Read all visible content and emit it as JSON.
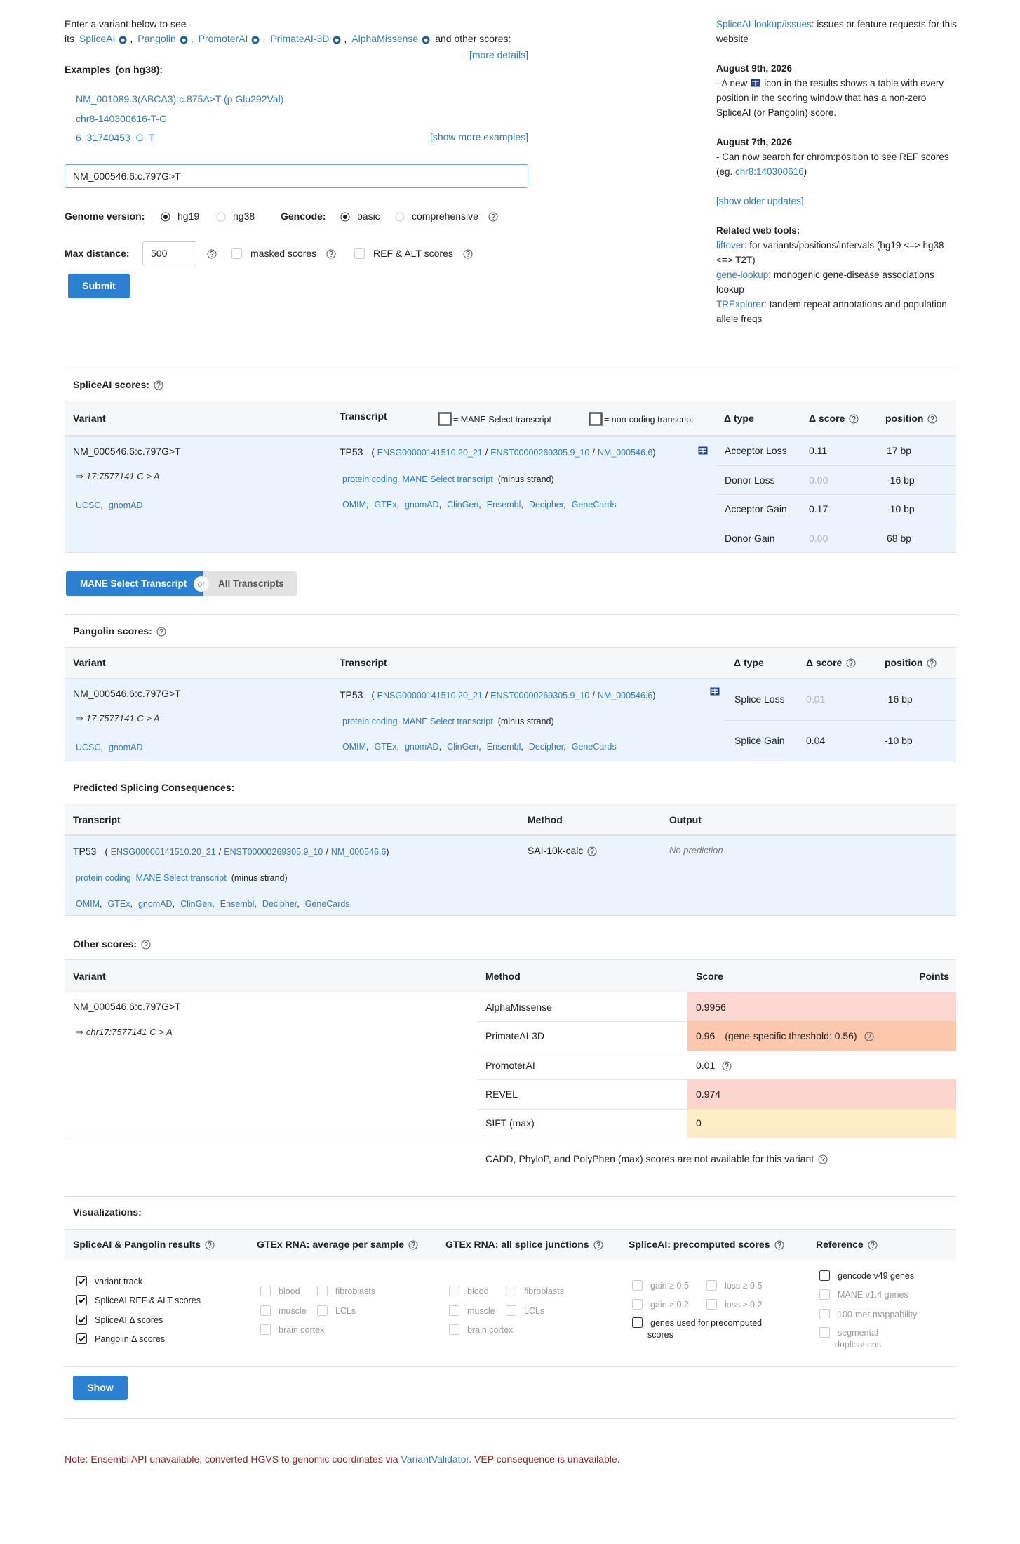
{
  "intro": {
    "lead": "Enter a variant below to see its",
    "tools": [
      "SpliceAI",
      "Pangolin",
      "PromoterAI",
      "PrimateAI-3D",
      "AlphaMissense"
    ],
    "sep": ",",
    "tail": "and other scores:",
    "more_details": "[more details]"
  },
  "examples": {
    "label": "Examples",
    "genome": "(on hg38):",
    "items": [
      "NM_001089.3(ABCA3):c.875A>T (p.Glu292Val)",
      "chr8-140300616-T-G",
      "6  31740453  G  T"
    ],
    "show_more": "[show more examples]"
  },
  "form": {
    "variant": "NM_000546.6:c.797G>T",
    "genome_label": "Genome version:",
    "genome_options": [
      "hg19",
      "hg38"
    ],
    "gencode_label": "Gencode:",
    "gencode_options": [
      "basic",
      "comprehensive"
    ],
    "max_distance_label": "Max distance:",
    "max_distance": 500,
    "checkboxes": [
      "masked scores",
      "REF & ALT scores"
    ],
    "submit": "Submit"
  },
  "sidebar": {
    "issues_link": "SpliceAI-lookup/issues",
    "issues_text": ": issues or feature requests for this website",
    "updates": [
      {
        "date": "August 9th, 2026",
        "before": "- A new",
        "after": "icon in the results shows a table with every position in the scoring window that has a non-zero SpliceAI (or Pangolin) score."
      },
      {
        "date": "August 7th, 2026",
        "before": "- Can now search for chrom:position to see REF scores (eg.",
        "link": "chr8:140300616",
        "after": ")"
      }
    ],
    "show_older": "[show older updates]",
    "tools_title": "Related web tools:",
    "tools": [
      {
        "name": "liftover",
        "desc": ": for variants/positions/intervals (hg19 <=> hg38 <=> T2T)"
      },
      {
        "name": "gene-lookup",
        "desc": ": monogenic gene-disease associations lookup"
      },
      {
        "name": "TRExplorer",
        "desc": ": tandem repeat annotations and population allele freqs"
      }
    ]
  },
  "spliceai": {
    "title": "SpliceAI scores:",
    "headers": {
      "variant": "Variant",
      "transcript": "Transcript",
      "mane_legend": "= MANE Select transcript",
      "noncoding_legend": "= non-coding transcript",
      "delta_type": "Δ type",
      "delta_score": "Δ score",
      "position": "position"
    },
    "variant": {
      "hgvs": "NM_000546.6:c.797G>T",
      "arrow": "⇒",
      "coords": "17:7577141 C > A",
      "links": [
        "UCSC",
        "gnomAD"
      ],
      "sep": ","
    },
    "transcript": {
      "gene": "TP53",
      "open": "(",
      "ids": [
        "ENSG00000141510.20_21",
        "ENST00000269305.9_10",
        "NM_000546.6"
      ],
      "id_sep": "/",
      "close": ")",
      "biotype": "protein coding",
      "mane": "MANE Select transcript",
      "strand": "(minus strand)",
      "links": [
        "OMIM",
        "GTEx",
        "gnomAD",
        "ClinGen",
        "Ensembl",
        "Decipher",
        "GeneCards"
      ],
      "sep": ","
    },
    "rows": [
      {
        "type": "Acceptor Loss",
        "score": "0.11",
        "position": "17 bp"
      },
      {
        "type": "Donor Loss",
        "score": "0.00",
        "position": "-16 bp"
      },
      {
        "type": "Acceptor Gain",
        "score": "0.17",
        "position": "-10 bp"
      },
      {
        "type": "Donor Gain",
        "score": "0.00",
        "position": "68 bp"
      }
    ]
  },
  "toggle": {
    "mane": "MANE Select Transcript",
    "or": "or",
    "all": "All Transcripts"
  },
  "pangolin": {
    "title": "Pangolin scores:",
    "headers": {
      "variant": "Variant",
      "transcript": "Transcript",
      "delta_type": "Δ type",
      "delta_score": "Δ score",
      "position": "position"
    },
    "variant": {
      "hgvs": "NM_000546.6:c.797G>T",
      "arrow": "⇒",
      "coords": "17:7577141 C > A",
      "links": [
        "UCSC",
        "gnomAD"
      ],
      "sep": ","
    },
    "transcript": {
      "gene": "TP53",
      "open": "(",
      "ids": [
        "ENSG00000141510.20_21",
        "ENST00000269305.9_10",
        "NM_000546.6"
      ],
      "id_sep": "/",
      "close": ")",
      "biotype": "protein coding",
      "mane": "MANE Select transcript",
      "strand": "(minus strand)",
      "links": [
        "OMIM",
        "GTEx",
        "gnomAD",
        "ClinGen",
        "Ensembl",
        "Decipher",
        "GeneCards"
      ],
      "sep": ","
    },
    "rows": [
      {
        "type": "Splice Loss",
        "score": "0.01",
        "position": "-16 bp"
      },
      {
        "type": "Splice Gain",
        "score": "0.04",
        "position": "-10 bp"
      }
    ]
  },
  "consequences": {
    "title": "Predicted Splicing Consequences:",
    "headers": {
      "transcript": "Transcript",
      "method": "Method",
      "output": "Output"
    },
    "transcript": {
      "gene": "TP53",
      "open": "(",
      "ids": [
        "ENSG00000141510.20_21",
        "ENST00000269305.9_10",
        "NM_000546.6"
      ],
      "id_sep": "/",
      "close": ")",
      "biotype": "protein coding",
      "mane": "MANE Select transcript",
      "strand": "(minus strand)",
      "links": [
        "OMIM",
        "GTEx",
        "gnomAD",
        "ClinGen",
        "Ensembl",
        "Decipher",
        "GeneCards"
      ],
      "sep": ","
    },
    "method": "SAI-10k-calc",
    "output": "No prediction"
  },
  "other": {
    "title": "Other scores:",
    "headers": {
      "variant": "Variant",
      "method": "Method",
      "score": "Score",
      "points": "Points"
    },
    "variant": {
      "hgvs": "NM_000546.6:c.797G>T",
      "arrow": "⇒",
      "coords": "chr17:7577141 C > A"
    },
    "rows": [
      {
        "method": "AlphaMissense",
        "score": 0.9956,
        "color": "#fdd8d2"
      },
      {
        "method": "PrimateAI-3D",
        "score": 0.96,
        "note": "(gene-specific threshold: 0.56)",
        "color": "#fcc8ad"
      },
      {
        "method": "PromoterAI",
        "score": 0.01
      },
      {
        "method": "REVEL",
        "score": 0.974,
        "color": "#fdd5cf"
      },
      {
        "method": "SIFT (max)",
        "score": 0,
        "color": "#feecc7"
      }
    ],
    "note": "CADD, PhyloP, and PolyPhen (max) scores are not available for this variant"
  },
  "visualizations": {
    "title": "Visualizations:",
    "columns": [
      {
        "header": "SpliceAI & Pangolin results",
        "items": [
          "variant track",
          "SpliceAI REF & ALT scores",
          "SpliceAI Δ scores",
          "Pangolin Δ scores"
        ]
      },
      {
        "header": "GTEx RNA: average per sample",
        "items": [
          "blood",
          "fibroblasts",
          "muscle",
          "LCLs",
          "brain cortex"
        ]
      },
      {
        "header": "GTEx RNA: all splice junctions",
        "items": [
          "blood",
          "fibroblasts",
          "muscle",
          "LCLs",
          "brain cortex"
        ]
      },
      {
        "header": "SpliceAI: precomputed scores",
        "items": [
          "gain ≥ 0.5",
          "loss ≥ 0.5",
          "gain ≥ 0.2",
          "loss ≥ 0.2",
          "genes used for precomputed scores"
        ]
      },
      {
        "header": "Reference",
        "items": [
          "gencode v49 genes",
          "MANE v1.4 genes",
          "100-mer mappability",
          "segmental duplications"
        ]
      }
    ],
    "show": "Show"
  },
  "footer": {
    "before": "Note: Ensembl API unavailable; converted HGVS to genomic coordinates via",
    "link": "VariantValidator",
    "after": ". VEP consequence is unavailable."
  }
}
